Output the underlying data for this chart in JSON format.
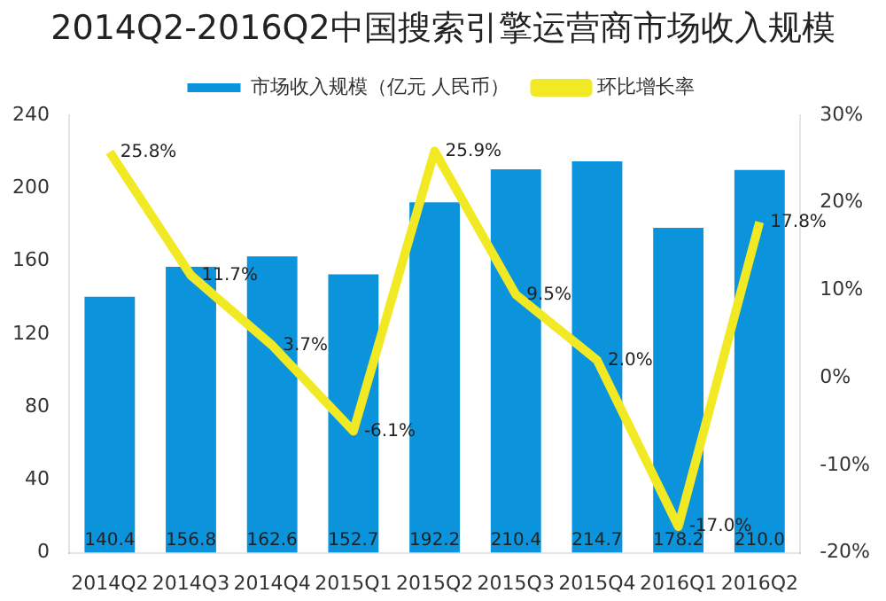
{
  "chart_data": {
    "type": "bar",
    "title": "2014Q2-2016Q2中国搜索引擎运营商市场收入规模",
    "categories": [
      "2014Q2",
      "2014Q3",
      "2014Q4",
      "2015Q1",
      "2015Q2",
      "2015Q3",
      "2015Q4",
      "2016Q1",
      "2016Q2"
    ],
    "series": [
      {
        "name": "市场收入规模（亿元 人民币）",
        "color": "#0b93dc",
        "values": [
          140.4,
          156.8,
          162.6,
          152.7,
          192.2,
          210.4,
          214.7,
          178.2,
          210.0
        ],
        "value_labels": [
          "140.4",
          "156.8",
          "162.6",
          "152.7",
          "192.2",
          "210.4",
          "214.7",
          "178.2",
          "210.0"
        ]
      },
      {
        "name": "环比增长率",
        "type": "line",
        "axis": "y2",
        "color": "#f2e925",
        "marker": "none",
        "values": [
          25.8,
          11.7,
          3.7,
          -6.1,
          25.9,
          9.5,
          2.0,
          -17.0,
          17.8
        ],
        "value_labels": [
          "25.8%",
          "11.7%",
          "3.7%",
          "-6.1%",
          "25.9%",
          "9.5%",
          "2.0%",
          "-17.0%",
          "17.8%"
        ]
      }
    ],
    "ylim": [
      0,
      240
    ],
    "yticks": [
      0,
      40,
      80,
      120,
      160,
      200,
      240
    ],
    "y2lim": [
      -20,
      30
    ],
    "y2ticks": [
      {
        "value": -20,
        "label": "-20%"
      },
      {
        "value": -10,
        "label": "-10%"
      },
      {
        "value": 0,
        "label": "0%"
      },
      {
        "value": 10,
        "label": "10%"
      },
      {
        "value": 20,
        "label": "20%"
      },
      {
        "value": 30,
        "label": "30%"
      }
    ],
    "grid": false,
    "legend": "top"
  }
}
